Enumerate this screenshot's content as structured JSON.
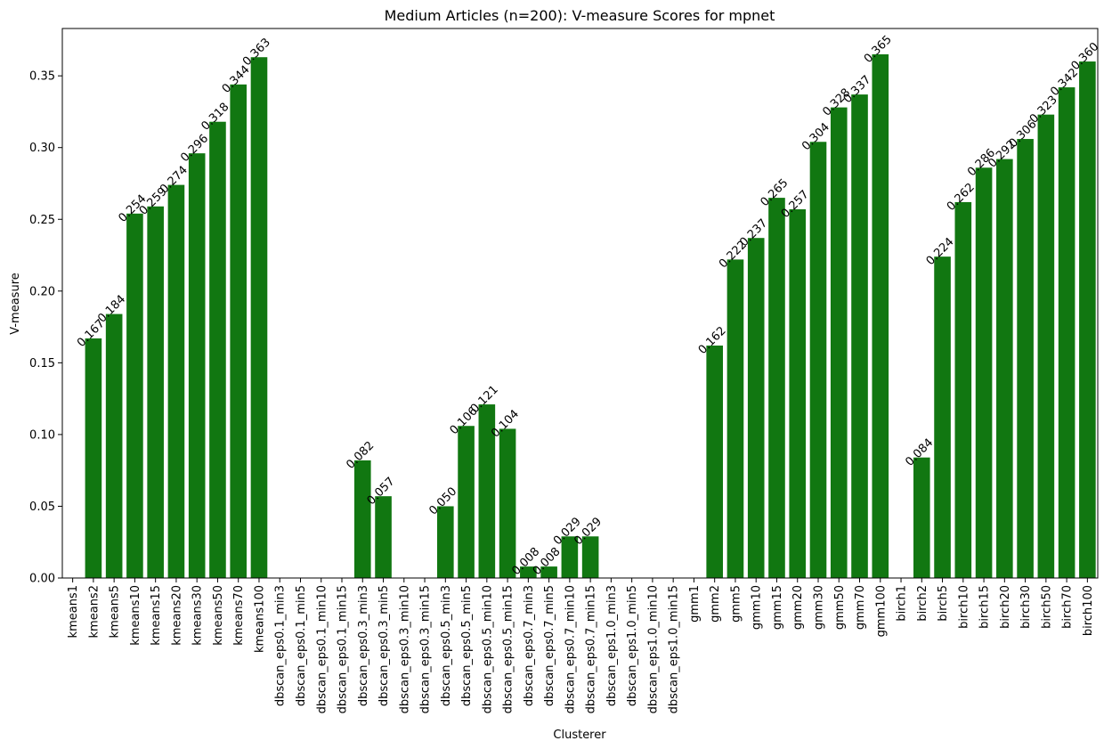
{
  "chart_data": {
    "type": "bar",
    "title": "Medium Articles (n=200): V-measure Scores for mpnet",
    "xlabel": "Clusterer",
    "ylabel": "V-measure",
    "ylim": [
      0,
      0.383
    ],
    "yticks": [
      0.0,
      0.05,
      0.1,
      0.15,
      0.2,
      0.25,
      0.3,
      0.35
    ],
    "ytick_labels": [
      "0.00",
      "0.05",
      "0.10",
      "0.15",
      "0.20",
      "0.25",
      "0.30",
      "0.35"
    ],
    "bar_color": "#117711",
    "grid": false,
    "categories": [
      "kmeans1",
      "kmeans2",
      "kmeans5",
      "kmeans10",
      "kmeans15",
      "kmeans20",
      "kmeans30",
      "kmeans50",
      "kmeans70",
      "kmeans100",
      "dbscan_eps0.1_min3",
      "dbscan_eps0.1_min5",
      "dbscan_eps0.1_min10",
      "dbscan_eps0.1_min15",
      "dbscan_eps0.3_min3",
      "dbscan_eps0.3_min5",
      "dbscan_eps0.3_min10",
      "dbscan_eps0.3_min15",
      "dbscan_eps0.5_min3",
      "dbscan_eps0.5_min5",
      "dbscan_eps0.5_min10",
      "dbscan_eps0.5_min15",
      "dbscan_eps0.7_min3",
      "dbscan_eps0.7_min5",
      "dbscan_eps0.7_min10",
      "dbscan_eps0.7_min15",
      "dbscan_eps1.0_min3",
      "dbscan_eps1.0_min5",
      "dbscan_eps1.0_min10",
      "dbscan_eps1.0_min15",
      "gmm1",
      "gmm2",
      "gmm5",
      "gmm10",
      "gmm15",
      "gmm20",
      "gmm30",
      "gmm50",
      "gmm70",
      "gmm100",
      "birch1",
      "birch2",
      "birch5",
      "birch10",
      "birch15",
      "birch20",
      "birch30",
      "birch50",
      "birch70",
      "birch100"
    ],
    "values": [
      0,
      0.167,
      0.184,
      0.254,
      0.259,
      0.274,
      0.296,
      0.318,
      0.344,
      0.363,
      0,
      0,
      0,
      0,
      0.082,
      0.057,
      0,
      0,
      0.05,
      0.106,
      0.121,
      0.104,
      0.008,
      0.008,
      0.029,
      0.029,
      0,
      0,
      0,
      0,
      0,
      0.162,
      0.222,
      0.237,
      0.265,
      0.257,
      0.304,
      0.328,
      0.337,
      0.365,
      0,
      0.084,
      0.224,
      0.262,
      0.286,
      0.292,
      0.306,
      0.323,
      0.342,
      0.36
    ],
    "data_labels": [
      "",
      "0.167",
      "0.184",
      "0.254",
      "0.259",
      "0.274",
      "0.296",
      "0.318",
      "0.344",
      "0.363",
      "",
      "",
      "",
      "",
      "0.082",
      "0.057",
      "",
      "",
      "0.050",
      "0.106",
      "0.121",
      "0.104",
      "0.008",
      "0.008",
      "0.029",
      "0.029",
      "",
      "",
      "",
      "",
      "",
      "0.162",
      "0.222",
      "0.237",
      "0.265",
      "0.257",
      "0.304",
      "0.328",
      "0.337",
      "0.365",
      "",
      "0.084",
      "0.224",
      "0.262",
      "0.286",
      "0.292",
      "0.306",
      "0.323",
      "0.342",
      "0.360"
    ]
  }
}
